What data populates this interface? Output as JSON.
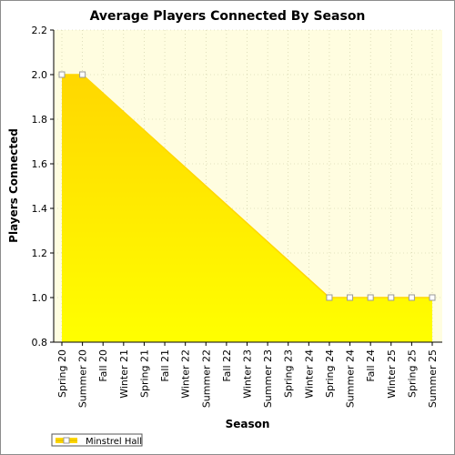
{
  "chart_data": {
    "type": "area",
    "title": "Average Players Connected By Season",
    "xlabel": "Season",
    "ylabel": "Players Connected",
    "categories": [
      "Spring 20",
      "Summer 20",
      "Fall 20",
      "Winter 21",
      "Spring 21",
      "Fall 21",
      "Winter 22",
      "Summer 22",
      "Fall 22",
      "Winter 23",
      "Summer 23",
      "Spring 23",
      "Winter 24",
      "Spring 24",
      "Summer 24",
      "Fall 24",
      "Winter 25",
      "Spring 25",
      "Summer 25"
    ],
    "series": [
      {
        "name": "Minstrel Hall",
        "values": [
          2.0,
          2.0,
          null,
          null,
          null,
          null,
          null,
          null,
          null,
          null,
          null,
          null,
          null,
          1.0,
          1.0,
          1.0,
          1.0,
          1.0,
          1.0
        ]
      }
    ],
    "ylim": [
      0.8,
      2.2
    ],
    "yticks": [
      "0.8",
      "1.0",
      "1.2",
      "1.4",
      "1.6",
      "1.8",
      "2.0",
      "2.2"
    ],
    "grid": true,
    "legend_position": "bottom-left",
    "colors": {
      "plot_background": "#fffde0",
      "area_top": "#ffd700",
      "area_bottom": "#ffff00",
      "line": "#ffd700",
      "marker_fill": "#ffffff",
      "marker_stroke": "#999999",
      "grid": "#c8c8a0"
    }
  }
}
